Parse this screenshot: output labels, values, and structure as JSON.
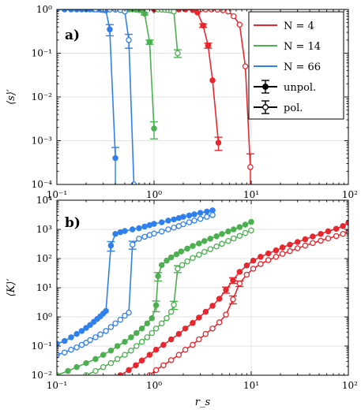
{
  "chart_data": [
    {
      "panel_label": "a)",
      "type": "line",
      "ylabel": "⟨s⟩′",
      "xlabel": "",
      "xscale": "log",
      "yscale": "log",
      "xlim": [
        0.1,
        100
      ],
      "ylim": [
        0.0001,
        1
      ],
      "grid": true,
      "x_tick_labels": [
        "10⁻¹",
        "10⁰",
        "10¹",
        "10²"
      ],
      "y_tick_labels": [
        "10⁰",
        "10⁻¹",
        "10⁻²",
        "10⁻³",
        "10⁻⁴"
      ],
      "legend": {
        "placement": "top-right",
        "entries": [
          {
            "label": "N = 4",
            "color": "#e8262e"
          },
          {
            "label": "N = 14",
            "color": "#4caf50"
          },
          {
            "label": "N = 66",
            "color": "#2f80ed"
          },
          {
            "label": "unpol.",
            "color": "#000000",
            "marker": "filled"
          },
          {
            "label": "pol.",
            "color": "#000000",
            "marker": "open"
          }
        ]
      },
      "series": [
        {
          "name": "N = 4",
          "polarization": "unpol.",
          "color": "#e8262e",
          "marker": "filled",
          "x": [
            1.0,
            1.2,
            1.5,
            1.8,
            2.1,
            2.5,
            2.8,
            3.2,
            3.6,
            4.0,
            4.6
          ],
          "y": [
            1.0,
            1.0,
            1.0,
            1.0,
            1.0,
            0.97,
            0.85,
            0.43,
            0.15,
            0.024,
            0.0009
          ],
          "yerr": [
            0,
            0,
            0,
            0,
            0,
            0,
            0,
            0.04,
            0.02,
            0,
            0.0003
          ]
        },
        {
          "name": "N = 4",
          "polarization": "pol.",
          "color": "#e8262e",
          "marker": "open",
          "x": [
            3.0,
            3.4,
            3.9,
            4.5,
            5.1,
            5.8,
            6.6,
            7.6,
            8.7,
            9.8
          ],
          "y": [
            1.0,
            1.0,
            1.0,
            0.99,
            0.96,
            0.9,
            0.7,
            0.45,
            0.05,
            0.00025
          ],
          "yerr": [
            0,
            0,
            0,
            0,
            0,
            0,
            0,
            0,
            0,
            0.00025
          ]
        },
        {
          "name": "N = 14",
          "polarization": "unpol.",
          "color": "#4caf50",
          "marker": "filled",
          "x": [
            0.3,
            0.35,
            0.4,
            0.45,
            0.5,
            0.55,
            0.6,
            0.65,
            0.7,
            0.75,
            0.8,
            0.9,
            1.0
          ],
          "y": [
            1.0,
            1.0,
            1.0,
            1.0,
            1.0,
            1.0,
            1.0,
            0.99,
            0.97,
            0.95,
            0.8,
            0.18,
            0.0019
          ],
          "yerr": [
            0,
            0,
            0,
            0,
            0,
            0,
            0,
            0,
            0,
            0,
            0.05,
            0.02,
            0.0008
          ]
        },
        {
          "name": "N = 14",
          "polarization": "pol.",
          "color": "#4caf50",
          "marker": "open",
          "x": [
            1.1,
            1.2,
            1.3,
            1.4,
            1.5,
            1.6,
            1.75
          ],
          "y": [
            1.0,
            0.99,
            0.98,
            0.97,
            0.95,
            0.9,
            0.1
          ],
          "yerr": [
            0,
            0,
            0,
            0,
            0,
            0,
            0.02
          ]
        },
        {
          "name": "N = 66",
          "polarization": "unpol.",
          "color": "#2f80ed",
          "marker": "filled",
          "x": [
            0.1,
            0.12,
            0.14,
            0.16,
            0.18,
            0.2,
            0.22,
            0.24,
            0.26,
            0.28,
            0.3,
            0.32,
            0.35,
            0.4
          ],
          "y": [
            1.0,
            1.0,
            1.0,
            1.0,
            1.0,
            1.0,
            1.0,
            1.0,
            1.0,
            0.99,
            0.97,
            0.95,
            0.35,
            0.0004
          ],
          "yerr": [
            0,
            0,
            0,
            0,
            0,
            0,
            0,
            0,
            0,
            0,
            0,
            0,
            0.1,
            0.0003
          ]
        },
        {
          "name": "N = 66",
          "polarization": "pol.",
          "color": "#2f80ed",
          "marker": "open",
          "x": [
            0.25,
            0.3,
            0.35,
            0.4,
            0.45,
            0.5,
            0.55,
            0.62
          ],
          "y": [
            1.0,
            1.0,
            1.0,
            0.99,
            0.97,
            0.9,
            0.2,
            0.0001
          ],
          "yerr": [
            0,
            0,
            0,
            0,
            0,
            0,
            0.07,
            0
          ]
        }
      ]
    },
    {
      "panel_label": "b)",
      "type": "line",
      "ylabel": "⟨K⟩′",
      "xlabel": "r_s",
      "xscale": "log",
      "yscale": "log",
      "xlim": [
        0.1,
        100
      ],
      "ylim": [
        0.01,
        10000
      ],
      "grid": true,
      "x_tick_labels": [
        "10⁻¹",
        "10⁰",
        "10¹",
        "10²"
      ],
      "y_tick_labels": [
        "10⁴",
        "10³",
        "10²",
        "10¹",
        "10⁰",
        "10⁻¹",
        "10⁻²"
      ],
      "series": [
        {
          "name": "N = 66",
          "polarization": "unpol.",
          "color": "#2f80ed",
          "marker": "filled",
          "x": [
            0.1,
            0.12,
            0.14,
            0.16,
            0.18,
            0.2,
            0.22,
            0.24,
            0.26,
            0.28,
            0.3,
            0.32,
            0.36,
            0.4,
            0.45,
            0.5,
            0.6,
            0.7,
            0.8,
            0.9,
            1.0,
            1.2,
            1.4,
            1.6,
            1.8,
            2.0,
            2.3,
            2.6,
            3.0,
            3.5,
            4.0
          ],
          "y": [
            0.12,
            0.15,
            0.2,
            0.26,
            0.33,
            0.42,
            0.53,
            0.68,
            0.85,
            1.05,
            1.3,
            1.6,
            280,
            700,
            800,
            880,
            1000,
            1100,
            1250,
            1400,
            1550,
            1750,
            2000,
            2200,
            2450,
            2700,
            3000,
            3300,
            3700,
            4100,
            4500
          ],
          "yerr": [
            0,
            0,
            0,
            0,
            0,
            0,
            0,
            0,
            0,
            0,
            0,
            0,
            100,
            0,
            0,
            0,
            0,
            0,
            0,
            0,
            0,
            0,
            0,
            0,
            0,
            0,
            0,
            0,
            0,
            0,
            0
          ]
        },
        {
          "name": "N = 66",
          "polarization": "pol.",
          "color": "#2f80ed",
          "marker": "open",
          "x": [
            0.1,
            0.12,
            0.14,
            0.16,
            0.18,
            0.2,
            0.22,
            0.25,
            0.28,
            0.32,
            0.36,
            0.4,
            0.45,
            0.5,
            0.55,
            0.6,
            0.7,
            0.8,
            0.9,
            1.0,
            1.2,
            1.4,
            1.6,
            1.8,
            2.0,
            2.3,
            2.6,
            3.0,
            3.5,
            4.0
          ],
          "y": [
            0.05,
            0.06,
            0.075,
            0.09,
            0.11,
            0.13,
            0.16,
            0.2,
            0.25,
            0.33,
            0.45,
            0.6,
            0.8,
            1.1,
            1.4,
            300,
            480,
            560,
            640,
            720,
            850,
            1000,
            1150,
            1300,
            1500,
            1750,
            2000,
            2300,
            2700,
            3100
          ],
          "yerr": [
            0,
            0,
            0,
            0,
            0,
            0,
            0,
            0,
            0,
            0,
            0,
            0,
            0,
            0,
            0,
            90,
            0,
            0,
            0,
            0,
            0,
            0,
            0,
            0,
            0,
            0,
            0,
            0,
            0,
            0
          ]
        },
        {
          "name": "N = 14",
          "polarization": "unpol.",
          "color": "#4caf50",
          "marker": "filled",
          "x": [
            0.1,
            0.13,
            0.16,
            0.2,
            0.25,
            0.3,
            0.36,
            0.42,
            0.5,
            0.58,
            0.66,
            0.75,
            0.85,
            0.95,
            1.05,
            1.1,
            1.2,
            1.35,
            1.5,
            1.7,
            1.9,
            2.2,
            2.5,
            2.9,
            3.3,
            3.8,
            4.4,
            5.0,
            5.8,
            6.6,
            7.6,
            8.7,
            10
          ],
          "y": [
            0.01,
            0.014,
            0.019,
            0.026,
            0.036,
            0.05,
            0.07,
            0.1,
            0.14,
            0.2,
            0.28,
            0.4,
            0.6,
            0.9,
            2.5,
            25,
            60,
            85,
            110,
            140,
            175,
            220,
            270,
            330,
            400,
            480,
            580,
            700,
            850,
            1000,
            1200,
            1450,
            1800
          ],
          "yerr": [
            0,
            0,
            0,
            0,
            0,
            0,
            0,
            0,
            0,
            0,
            0,
            0,
            0,
            0,
            1,
            8,
            0,
            0,
            0,
            0,
            0,
            0,
            0,
            0,
            0,
            0,
            0,
            0,
            0,
            0,
            0,
            0,
            0
          ]
        },
        {
          "name": "N = 14",
          "polarization": "pol.",
          "color": "#4caf50",
          "marker": "open",
          "x": [
            0.2,
            0.25,
            0.3,
            0.36,
            0.42,
            0.5,
            0.58,
            0.66,
            0.75,
            0.85,
            0.95,
            1.05,
            1.2,
            1.35,
            1.5,
            1.6,
            1.75,
            1.95,
            2.2,
            2.5,
            2.9,
            3.3,
            3.8,
            4.4,
            5.0,
            5.8,
            6.6,
            7.6,
            8.7,
            10
          ],
          "y": [
            0.01,
            0.014,
            0.019,
            0.026,
            0.036,
            0.05,
            0.07,
            0.1,
            0.14,
            0.2,
            0.28,
            0.4,
            0.6,
            0.9,
            1.5,
            2.6,
            45,
            60,
            80,
            105,
            135,
            170,
            210,
            260,
            320,
            400,
            490,
            600,
            750,
            920
          ],
          "yerr": [
            0,
            0,
            0,
            0,
            0,
            0,
            0,
            0,
            0,
            0,
            0,
            0,
            0,
            0,
            0,
            0.8,
            12,
            0,
            0,
            0,
            0,
            0,
            0,
            0,
            0,
            0,
            0,
            0,
            0,
            0
          ]
        },
        {
          "name": "N = 4",
          "polarization": "unpol.",
          "color": "#e8262e",
          "marker": "filled",
          "x": [
            0.45,
            0.55,
            0.65,
            0.75,
            0.9,
            1.05,
            1.25,
            1.5,
            1.8,
            2.1,
            2.5,
            2.9,
            3.4,
            4.0,
            4.7,
            5.5,
            6.5,
            7.6,
            9.0,
            10.5,
            12.5,
            15,
            18,
            21,
            25,
            30,
            36,
            43,
            52,
            62,
            75,
            88,
            100
          ],
          "y": [
            0.01,
            0.015,
            0.022,
            0.032,
            0.05,
            0.075,
            0.11,
            0.17,
            0.26,
            0.4,
            0.62,
            0.95,
            1.5,
            2.4,
            4.2,
            8.5,
            18,
            35,
            58,
            85,
            115,
            150,
            190,
            240,
            300,
            370,
            460,
            570,
            700,
            860,
            1050,
            1300,
            1700
          ],
          "yerr": [
            0,
            0,
            0,
            0,
            0,
            0,
            0,
            0,
            0,
            0,
            0,
            0,
            0,
            0,
            0,
            2,
            4,
            0,
            0,
            0,
            0,
            0,
            0,
            0,
            0,
            0,
            0,
            0,
            0,
            0,
            0,
            0,
            0
          ]
        },
        {
          "name": "N = 4",
          "polarization": "pol.",
          "color": "#e8262e",
          "marker": "open",
          "x": [
            0.9,
            1.05,
            1.25,
            1.5,
            1.8,
            2.1,
            2.5,
            2.9,
            3.4,
            4.0,
            4.7,
            5.5,
            6.5,
            7.6,
            9.0,
            10.5,
            12.5,
            15,
            18,
            21,
            25,
            30,
            36,
            43,
            52,
            62,
            75,
            88,
            100
          ],
          "y": [
            0.01,
            0.015,
            0.022,
            0.033,
            0.05,
            0.075,
            0.11,
            0.17,
            0.26,
            0.4,
            0.65,
            1.2,
            4.0,
            14,
            28,
            45,
            65,
            88,
            115,
            145,
            180,
            225,
            280,
            340,
            410,
            490,
            590,
            700,
            820
          ],
          "yerr": [
            0,
            0,
            0,
            0,
            0,
            0,
            0,
            0,
            0,
            0,
            0,
            0,
            1.2,
            3,
            0,
            0,
            0,
            0,
            0,
            0,
            0,
            0,
            0,
            0,
            0,
            0,
            0,
            0,
            0
          ]
        }
      ]
    }
  ]
}
